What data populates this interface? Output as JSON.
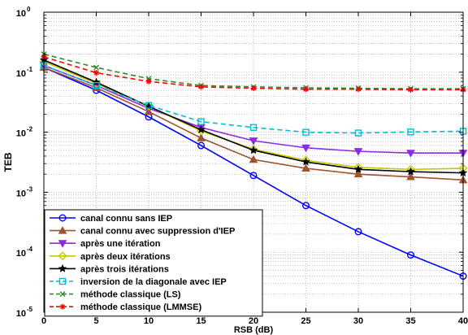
{
  "chart_data": {
    "type": "line",
    "xlabel": "RSB (dB)",
    "ylabel": "TEB",
    "x_scale": "linear",
    "y_scale": "log",
    "xlim": [
      0,
      40
    ],
    "ylim": [
      1e-05,
      1
    ],
    "x_ticks": [
      "0",
      "5",
      "10",
      "15",
      "20",
      "25",
      "30",
      "35",
      "40"
    ],
    "y_ticks": [
      {
        "value": 1,
        "exp": "0"
      },
      {
        "value": 0.1,
        "exp": "-1"
      },
      {
        "value": 0.01,
        "exp": "-2"
      },
      {
        "value": 0.001,
        "exp": "-3"
      },
      {
        "value": 0.0001,
        "exp": "-4"
      },
      {
        "value": 1e-05,
        "exp": "-5"
      }
    ],
    "grid": true,
    "legend_position": "bottom-left",
    "x": [
      0,
      5,
      10,
      15,
      20,
      25,
      30,
      35,
      40
    ],
    "series": [
      {
        "name": "canal connu sans IEP",
        "color": "#0000ff",
        "dash": "solid",
        "marker": "circle",
        "values": [
          0.12,
          0.05,
          0.018,
          0.006,
          0.0019,
          0.0006,
          0.00022,
          9e-05,
          4e-05
        ]
      },
      {
        "name": "canal connu avec suppression d'IEP",
        "color": "#a0522d",
        "dash": "solid",
        "marker": "triangle-up",
        "values": [
          0.12,
          0.055,
          0.022,
          0.008,
          0.0035,
          0.0025,
          0.002,
          0.0018,
          0.0016
        ]
      },
      {
        "name": "après une itération",
        "color": "#8b2be2",
        "dash": "solid",
        "marker": "triangle-down",
        "values": [
          0.13,
          0.06,
          0.025,
          0.012,
          0.0072,
          0.0055,
          0.0048,
          0.0045,
          0.0045
        ]
      },
      {
        "name": "après deux itérations",
        "color": "#c8c800",
        "dash": "solid",
        "marker": "diamond",
        "values": [
          0.15,
          0.065,
          0.027,
          0.0105,
          0.0052,
          0.0034,
          0.0026,
          0.0024,
          0.0025
        ]
      },
      {
        "name": "après trois itérations",
        "color": "#000000",
        "dash": "solid",
        "marker": "star",
        "values": [
          0.16,
          0.068,
          0.027,
          0.011,
          0.005,
          0.0032,
          0.0024,
          0.0022,
          0.0021
        ]
      },
      {
        "name": "inversion de la diagonale avec IEP",
        "color": "#00bcd4",
        "dash": "dashed",
        "marker": "square",
        "values": [
          0.13,
          0.06,
          0.028,
          0.015,
          0.012,
          0.01,
          0.0097,
          0.0101,
          0.0104
        ]
      },
      {
        "name": "méthode classique (LS)",
        "color": "#2e8b2e",
        "dash": "dashed",
        "marker": "x",
        "values": [
          0.2,
          0.12,
          0.078,
          0.06,
          0.057,
          0.055,
          0.054,
          0.053,
          0.053
        ]
      },
      {
        "name": "méthode classique (LMMSE)",
        "color": "#ff0000",
        "dash": "dashed",
        "marker": "asterisk",
        "values": [
          0.18,
          0.098,
          0.07,
          0.057,
          0.054,
          0.052,
          0.052,
          0.051,
          0.051
        ]
      }
    ]
  }
}
